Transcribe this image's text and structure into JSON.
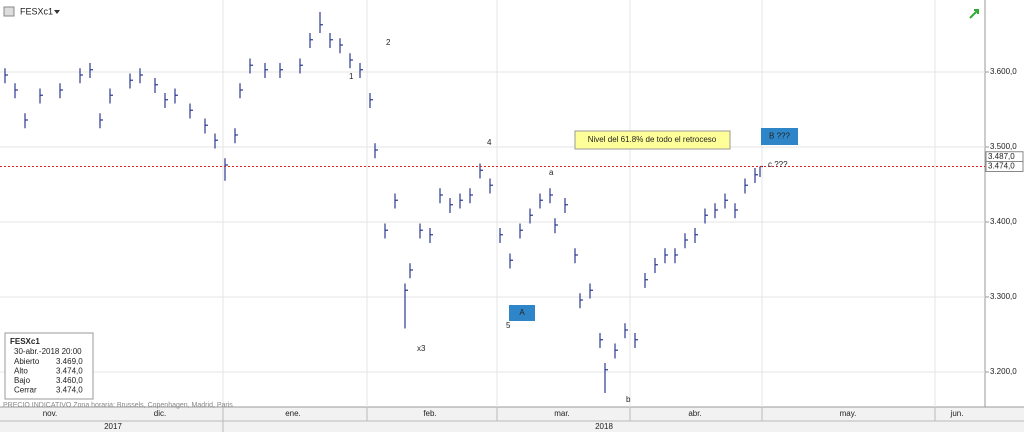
{
  "chart_data": {
    "type": "ohlc",
    "series": [
      {
        "name": "FESXc1",
        "color": "#2b3990",
        "x": [
          1,
          3,
          5,
          8,
          12,
          16,
          18,
          20,
          22,
          26,
          28,
          31,
          33,
          35,
          38,
          41,
          43,
          45,
          47,
          48,
          50,
          53,
          56,
          60,
          62,
          64,
          66,
          68,
          70,
          72,
          74,
          75,
          77,
          79,
          81,
          82,
          84,
          86,
          88,
          90,
          92,
          94,
          96,
          98,
          100,
          102,
          104,
          106,
          108,
          110,
          111,
          113,
          115,
          116,
          118,
          120,
          121,
          123,
          125,
          127,
          129,
          131,
          133,
          135,
          137,
          139,
          141,
          143,
          145,
          147,
          149,
          151,
          152
        ],
        "high": [
          3605,
          3585,
          3545,
          3578,
          3585,
          3605,
          3612,
          3545,
          3578,
          3598,
          3605,
          3592,
          3572,
          3578,
          3558,
          3538,
          3518,
          3485,
          3525,
          3585,
          3618,
          3612,
          3612,
          3618,
          3652,
          3680,
          3652,
          3645,
          3625,
          3612,
          3572,
          3505,
          3398,
          3438,
          3318,
          3345,
          3398,
          3392,
          3445,
          3432,
          3438,
          3445,
          3478,
          3458,
          3392,
          3358,
          3398,
          3418,
          3438,
          3445,
          3405,
          3432,
          3365,
          3305,
          3318,
          3252,
          3212,
          3238,
          3265,
          3252,
          3332,
          3352,
          3365,
          3365,
          3385,
          3392,
          3418,
          3425,
          3438,
          3425,
          3458,
          3472,
          3474
        ],
        "low": [
          3585,
          3565,
          3525,
          3558,
          3565,
          3585,
          3592,
          3525,
          3558,
          3578,
          3585,
          3572,
          3552,
          3558,
          3538,
          3518,
          3498,
          3455,
          3505,
          3565,
          3598,
          3592,
          3592,
          3598,
          3632,
          3652,
          3632,
          3625,
          3605,
          3592,
          3552,
          3485,
          3378,
          3418,
          3258,
          3325,
          3378,
          3372,
          3425,
          3412,
          3418,
          3425,
          3458,
          3438,
          3372,
          3338,
          3378,
          3398,
          3418,
          3425,
          3385,
          3412,
          3345,
          3285,
          3298,
          3232,
          3172,
          3218,
          3245,
          3232,
          3312,
          3332,
          3345,
          3345,
          3365,
          3372,
          3398,
          3405,
          3418,
          3405,
          3438,
          3452,
          3460
        ],
        "close": [
          3596,
          3576,
          3536,
          3569,
          3576,
          3596,
          3603,
          3536,
          3569,
          3589,
          3596,
          3583,
          3563,
          3569,
          3549,
          3529,
          3509,
          3476,
          3516,
          3576,
          3609,
          3603,
          3603,
          3609,
          3643,
          3663,
          3643,
          3636,
          3616,
          3603,
          3563,
          3496,
          3389,
          3429,
          3309,
          3336,
          3389,
          3383,
          3436,
          3423,
          3429,
          3436,
          3469,
          3449,
          3383,
          3349,
          3389,
          3409,
          3429,
          3436,
          3396,
          3423,
          3356,
          3296,
          3309,
          3243,
          3203,
          3229,
          3256,
          3243,
          3323,
          3343,
          3356,
          3356,
          3376,
          3383,
          3409,
          3416,
          3429,
          3416,
          3449,
          3463,
          3474
        ]
      }
    ],
    "xlim": [
      0,
      197
    ],
    "ylim": [
      3153.3,
      3696
    ],
    "yticks": [
      {
        "value": 3200,
        "label": "3.200,0"
      },
      {
        "value": 3300,
        "label": "3.300,0"
      },
      {
        "value": 3400,
        "label": "3.400,0"
      },
      {
        "value": 3500,
        "label": "3.500,0"
      },
      {
        "value": 3600,
        "label": "3.600,0"
      }
    ],
    "xticks": [
      {
        "value": 10,
        "label": "nov."
      },
      {
        "value": 32,
        "label": "dic."
      },
      {
        "value": 58.6,
        "label": "ene."
      },
      {
        "value": 86,
        "label": "feb."
      },
      {
        "value": 112.4,
        "label": "mar."
      },
      {
        "value": 139,
        "label": "abr."
      },
      {
        "value": 169.6,
        "label": "may."
      },
      {
        "value": 191.4,
        "label": "jun."
      }
    ],
    "month_bounds": [
      44.6,
      73.4,
      99.4,
      126,
      152.4,
      187
    ],
    "years": [
      {
        "value": 22.6,
        "label": "2017"
      },
      {
        "value": 120.8,
        "label": "2018"
      }
    ],
    "price_markers": [
      {
        "value": 3487,
        "label": "3.487,0"
      },
      {
        "value": 3474,
        "label": "3.474,0"
      }
    ],
    "annotations": [
      "1",
      "2",
      "4",
      "a",
      "5",
      "x3",
      "b",
      "c ???"
    ],
    "boxes": [
      "A",
      "B ???"
    ],
    "note": "Nivel del 61.8% de todo el retroceso",
    "grid": true
  },
  "info_panel": {
    "title": "FESXc1",
    "date": "30-abr.-2018 20:00",
    "rows": [
      [
        "Abierto",
        "3.469,0"
      ],
      [
        "Alto",
        "3.474,0"
      ],
      [
        "Bajo",
        "3.460,0"
      ],
      [
        "Cerrar",
        "3.474,0"
      ]
    ]
  },
  "footer": "PRECIO INDICATIVO   Zona horaria: Brussels, Copenhagen, Madrid, Paris"
}
